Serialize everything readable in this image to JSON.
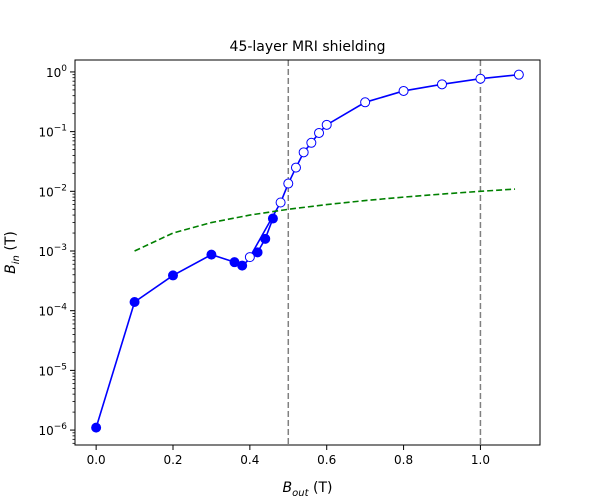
{
  "chart_data": {
    "type": "line",
    "title": "45-layer MRI shielding",
    "xlabel": {
      "base": "B",
      "sub": "out",
      "unit": " (T)"
    },
    "ylabel": {
      "base": "B",
      "sub": "in",
      "unit": " (T)"
    },
    "xlim": [
      -0.055,
      1.155
    ],
    "ylim_log10": [
      -6.25,
      0.2
    ],
    "yscale": "log",
    "grid": false,
    "x_ticks": [
      {
        "value": 0.0,
        "label": "0.0"
      },
      {
        "value": 0.2,
        "label": "0.2"
      },
      {
        "value": 0.4,
        "label": "0.4"
      },
      {
        "value": 0.6,
        "label": "0.6"
      },
      {
        "value": 0.8,
        "label": "0.8"
      },
      {
        "value": 1.0,
        "label": "1.0"
      }
    ],
    "y_ticks": [
      {
        "exp": -6,
        "label_base": "10",
        "label_exp": "−6"
      },
      {
        "exp": -5,
        "label_base": "10",
        "label_exp": "−5"
      },
      {
        "exp": -4,
        "label_base": "10",
        "label_exp": "−4"
      },
      {
        "exp": -3,
        "label_base": "10",
        "label_exp": "−3"
      },
      {
        "exp": -2,
        "label_base": "10",
        "label_exp": "−2"
      },
      {
        "exp": -1,
        "label_base": "10",
        "label_exp": "−1"
      },
      {
        "exp": 0,
        "label_base": "10",
        "label_exp": "0"
      }
    ],
    "vlines": [
      {
        "x": 0.5,
        "color": "#808080",
        "style": "dashed"
      },
      {
        "x": 1.0,
        "color": "#808080",
        "style": "dashed"
      }
    ],
    "series": [
      {
        "marker": "filled-circle",
        "color": "#0000ff",
        "points": [
          [
            0.0,
            1.1e-06
          ],
          [
            0.1,
            0.00014
          ],
          [
            0.2,
            0.00039
          ],
          [
            0.3,
            0.00087
          ],
          [
            0.36,
            0.00065
          ],
          [
            0.38,
            0.00057
          ],
          [
            0.42,
            0.00095
          ],
          [
            0.44,
            0.0016
          ],
          [
            0.46,
            0.0035
          ]
        ]
      },
      {
        "marker": "open-circle",
        "color": "#0000ff",
        "points": [
          [
            0.4,
            0.00079
          ],
          [
            0.48,
            0.0065
          ],
          [
            0.5,
            0.0135
          ],
          [
            0.52,
            0.025
          ],
          [
            0.54,
            0.045
          ],
          [
            0.56,
            0.065
          ],
          [
            0.58,
            0.095
          ],
          [
            0.6,
            0.13
          ],
          [
            0.7,
            0.31
          ],
          [
            0.8,
            0.48
          ],
          [
            0.9,
            0.62
          ],
          [
            1.0,
            0.77
          ],
          [
            1.1,
            0.9
          ]
        ]
      },
      {
        "marker": "none",
        "color": "#008000",
        "style": "dashed",
        "points": [
          [
            0.1,
            0.001
          ],
          [
            0.2,
            0.002
          ],
          [
            0.3,
            0.003
          ],
          [
            0.4,
            0.004
          ],
          [
            0.5,
            0.005
          ],
          [
            0.6,
            0.006
          ],
          [
            0.7,
            0.007
          ],
          [
            0.8,
            0.008
          ],
          [
            0.9,
            0.009
          ],
          [
            1.0,
            0.01
          ],
          [
            1.09,
            0.0109
          ]
        ]
      }
    ]
  }
}
